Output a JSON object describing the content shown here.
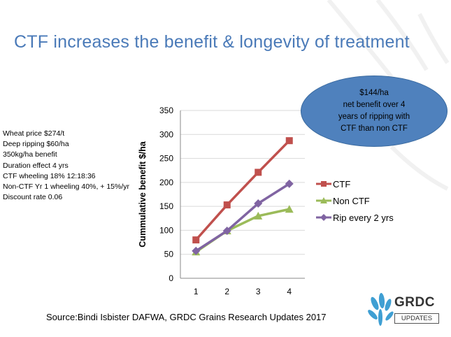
{
  "slide": {
    "title": "CTF increases the benefit & longevity of treatment",
    "callout": "$144/ha\nnet benefit over 4\nyears of  ripping with\nCTF than non CTF",
    "assumptions": [
      "Wheat price $274/t",
      "Deep ripping $60/ha",
      "350kg/ha benefit",
      "Duration effect 4 yrs",
      "CTF wheeling 18% 12:18:36",
      "Non-CTF Yr 1 wheeling 40%, + 15%/yr",
      "Discount rate 0.06"
    ],
    "source": "Source:Bindi Isbister DAFWA, GRDC Grains Research Updates 2017",
    "logo": {
      "word": "GRDC",
      "sub": "UPDATES"
    }
  },
  "chart_data": {
    "type": "line",
    "title": "",
    "xlabel": "",
    "ylabel": "Cummulative benefit $/ha",
    "x": [
      1,
      2,
      3,
      4
    ],
    "xtick_labels": [
      "1",
      "2",
      "3",
      "4"
    ],
    "ytick_labels": [
      "0",
      "50",
      "100",
      "150",
      "200",
      "250",
      "300",
      "350"
    ],
    "ylim": [
      0,
      350
    ],
    "grid": true,
    "legend": "right",
    "series": [
      {
        "name": "CTF",
        "values": [
          80,
          153,
          221,
          287
        ],
        "color": "#c0504d",
        "marker": "square"
      },
      {
        "name": "Non CTF",
        "values": [
          55,
          99,
          130,
          144
        ],
        "color": "#9bbb59",
        "marker": "triangle"
      },
      {
        "name": "Rip every 2 yrs",
        "values": [
          57,
          99,
          156,
          197
        ],
        "color": "#8064a2",
        "marker": "diamond"
      }
    ]
  }
}
